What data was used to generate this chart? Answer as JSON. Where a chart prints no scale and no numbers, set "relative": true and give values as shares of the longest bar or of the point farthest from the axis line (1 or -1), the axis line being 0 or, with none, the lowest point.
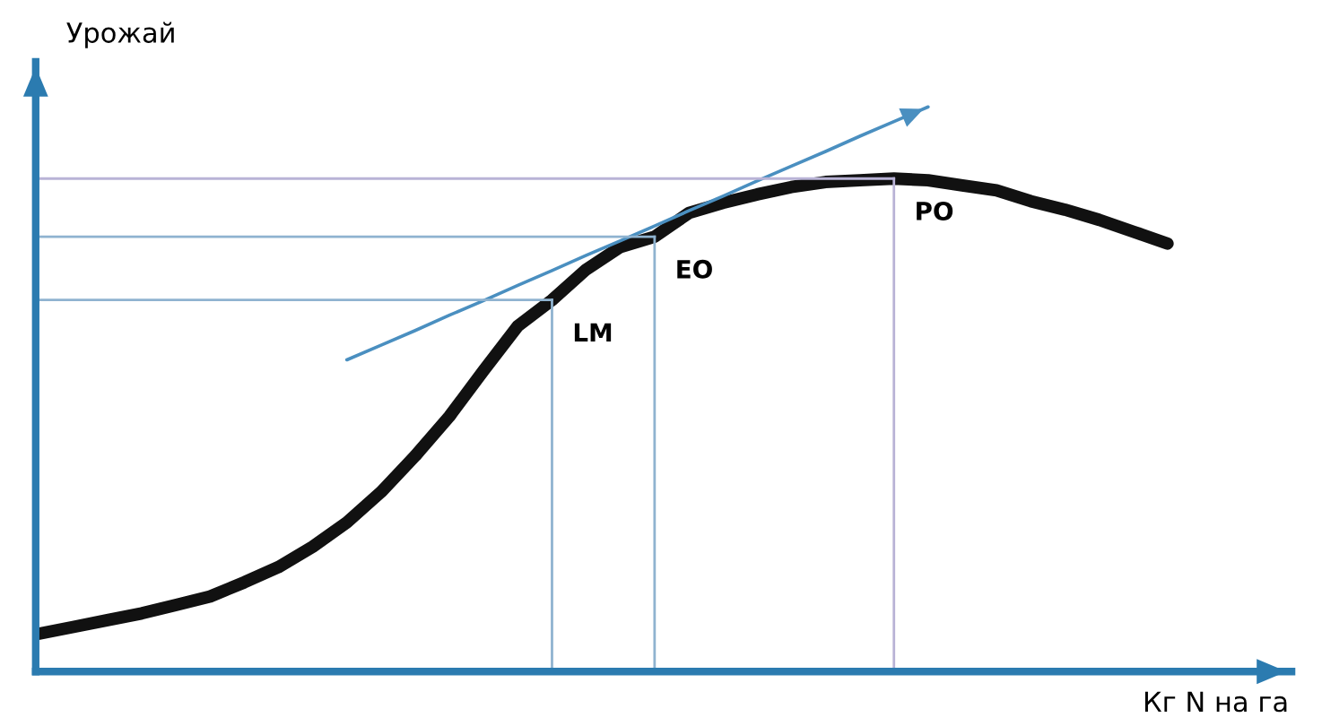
{
  "chart_data": {
    "type": "line",
    "relative": true,
    "xlabel": "Кг N на га",
    "ylabel": "Урожай",
    "legend": false,
    "categories": [
      null,
      null,
      null,
      null,
      null,
      null,
      null,
      null,
      null,
      null,
      null,
      null,
      null,
      null,
      null,
      null,
      null,
      null,
      null,
      null,
      null,
      null,
      null,
      null,
      null,
      null,
      null,
      null,
      null,
      null,
      null,
      null,
      null,
      null
    ],
    "series": [
      {
        "color": "#111111",
        "values": [
          0.067,
          0.079,
          0.091,
          0.103,
          0.118,
          0.133,
          0.158,
          0.185,
          0.221,
          0.264,
          0.318,
          0.382,
          0.452,
          0.533,
          0.612,
          0.658,
          0.712,
          0.752,
          0.77,
          0.812,
          0.83,
          0.845,
          0.858,
          0.867,
          0.87,
          0.873,
          0.87,
          0.861,
          0.852,
          0.833,
          0.818,
          0.8,
          0.779,
          0.758
        ]
      },
      {
        "color": "#4a8fc0",
        "values": [
          null,
          null,
          null,
          null,
          null,
          null,
          null,
          null,
          null,
          0.552,
          0.578,
          0.604,
          0.631,
          0.657,
          0.684,
          0.71,
          0.737,
          0.763,
          0.789,
          0.816,
          0.842,
          0.869,
          0.895,
          0.921,
          0.948,
          0.974,
          1.0,
          null,
          null,
          null,
          null,
          null,
          null,
          null
        ]
      }
    ],
    "ref_lines": [
      {
        "axis": "y",
        "value": 0.658,
        "label": "LM",
        "color": "#8fb3d0"
      },
      {
        "axis": "y",
        "value": 0.77,
        "label": "EO",
        "color": "#8fb3d0"
      },
      {
        "axis": "y",
        "value": 0.873,
        "label": "PO",
        "color": "#b9b3d6"
      }
    ]
  }
}
